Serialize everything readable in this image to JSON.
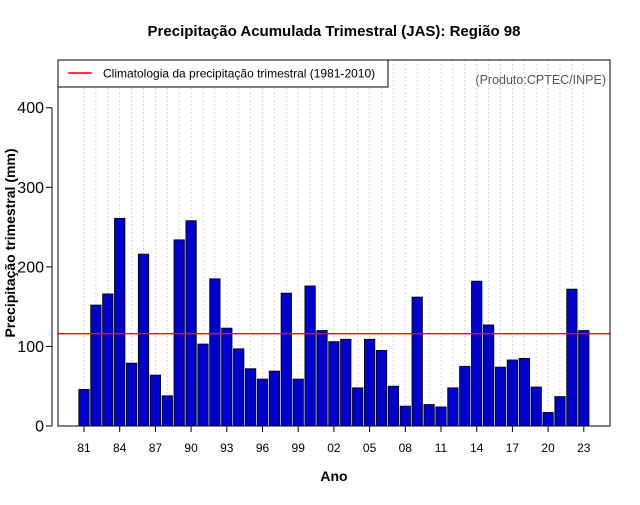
{
  "chart_data": {
    "type": "bar",
    "title": "Precipitação Acumulada Trimestral (JAS): Região 98",
    "xlabel": "Ano",
    "ylabel": "Precipitação trimestral (mm)",
    "ylim": [
      0,
      460
    ],
    "yticks": [
      0,
      100,
      200,
      300,
      400
    ],
    "grid": "vertical dotted",
    "legend": {
      "placement": "top-left",
      "entries": [
        "Climatologia da precipitação trimestral (1981-2010)"
      ]
    },
    "annotation": "(Produto:CPTEC/INPE)",
    "x_tick_labels": [
      "81",
      "84",
      "87",
      "90",
      "93",
      "96",
      "99",
      "02",
      "05",
      "08",
      "11",
      "14",
      "17",
      "20",
      "23"
    ],
    "x_tick_years": [
      1981,
      1984,
      1987,
      1990,
      1993,
      1996,
      1999,
      2002,
      2005,
      2008,
      2011,
      2014,
      2017,
      2020,
      2023
    ],
    "years": [
      1981,
      1982,
      1983,
      1984,
      1985,
      1986,
      1987,
      1988,
      1989,
      1990,
      1991,
      1992,
      1993,
      1994,
      1995,
      1996,
      1997,
      1998,
      1999,
      2000,
      2001,
      2002,
      2003,
      2004,
      2005,
      2006,
      2007,
      2008,
      2009,
      2010,
      2011,
      2012,
      2013,
      2014,
      2015,
      2016,
      2017,
      2018,
      2019,
      2020,
      2021,
      2022,
      2023
    ],
    "values": [
      46,
      152,
      166,
      261,
      79,
      216,
      64,
      38,
      234,
      258,
      103,
      185,
      123,
      97,
      72,
      59,
      69,
      167,
      59,
      176,
      120,
      106,
      109,
      48,
      109,
      95,
      50,
      25,
      162,
      27,
      24,
      48,
      75,
      182,
      127,
      74,
      83,
      85,
      49,
      17,
      37,
      172,
      120
    ],
    "climatology": 116,
    "colors": {
      "bar_fill": "#0000cc",
      "bar_stroke": "#000000",
      "climatology_line": "#ff0000",
      "grid": "#cccccc",
      "annotation": "#555555"
    }
  }
}
